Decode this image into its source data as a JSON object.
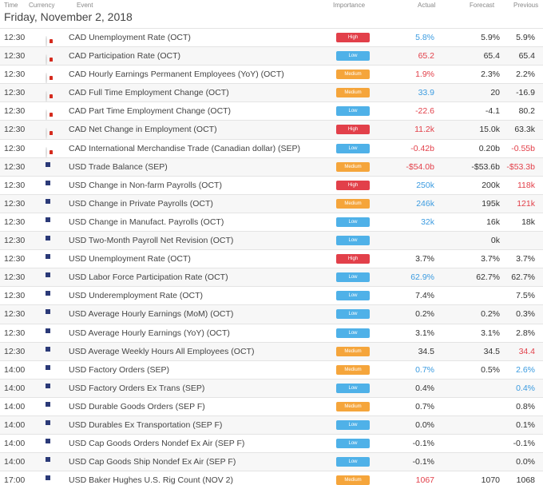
{
  "header": {
    "time": "Time",
    "currency": "Currency",
    "event": "Event",
    "importance": "Importance",
    "actual": "Actual",
    "forecast": "Forecast",
    "previous": "Previous"
  },
  "date": "Friday, November 2, 2018",
  "colors": {
    "high": "#e2404a",
    "low": "#4fb1e8",
    "medium": "#f5a53b",
    "positive": "#3b9be0",
    "negative": "#e2404a"
  },
  "rows": [
    {
      "time": "12:30",
      "flag": "ca",
      "event": "CAD Unemployment Rate (OCT)",
      "importance": "High",
      "imp": "high",
      "actual": "5.8%",
      "actual_tone": "pos",
      "forecast": "5.9%",
      "previous": "5.9%",
      "previous_tone": "neu"
    },
    {
      "time": "12:30",
      "flag": "ca",
      "event": "CAD Participation Rate (OCT)",
      "importance": "Low",
      "imp": "low",
      "actual": "65.2",
      "actual_tone": "neg",
      "forecast": "65.4",
      "previous": "65.4",
      "previous_tone": "neu"
    },
    {
      "time": "12:30",
      "flag": "ca",
      "event": "CAD Hourly Earnings Permanent Employees (YoY) (OCT)",
      "importance": "Medium",
      "imp": "medium",
      "actual": "1.9%",
      "actual_tone": "neg",
      "forecast": "2.3%",
      "previous": "2.2%",
      "previous_tone": "neu"
    },
    {
      "time": "12:30",
      "flag": "ca",
      "event": "CAD Full Time Employment Change (OCT)",
      "importance": "Medium",
      "imp": "medium",
      "actual": "33.9",
      "actual_tone": "pos",
      "forecast": "20",
      "previous": "-16.9",
      "previous_tone": "neu"
    },
    {
      "time": "12:30",
      "flag": "ca",
      "event": "CAD Part Time Employment Change (OCT)",
      "importance": "Low",
      "imp": "low",
      "actual": "-22.6",
      "actual_tone": "neg",
      "forecast": "-4.1",
      "previous": "80.2",
      "previous_tone": "neu"
    },
    {
      "time": "12:30",
      "flag": "ca",
      "event": "CAD Net Change in Employment (OCT)",
      "importance": "High",
      "imp": "high",
      "actual": "11.2k",
      "actual_tone": "neg",
      "forecast": "15.0k",
      "previous": "63.3k",
      "previous_tone": "neu"
    },
    {
      "time": "12:30",
      "flag": "ca",
      "event": "CAD International Merchandise Trade (Canadian dollar) (SEP)",
      "importance": "Low",
      "imp": "low",
      "actual": "-0.42b",
      "actual_tone": "neg",
      "forecast": "0.20b",
      "previous": "-0.55b",
      "previous_tone": "neg"
    },
    {
      "time": "12:30",
      "flag": "us",
      "event": "USD Trade Balance (SEP)",
      "importance": "Medium",
      "imp": "medium",
      "actual": "-$54.0b",
      "actual_tone": "neg",
      "forecast": "-$53.6b",
      "previous": "-$53.3b",
      "previous_tone": "neg"
    },
    {
      "time": "12:30",
      "flag": "us",
      "event": "USD Change in Non-farm Payrolls (OCT)",
      "importance": "High",
      "imp": "high",
      "actual": "250k",
      "actual_tone": "pos",
      "forecast": "200k",
      "previous": "118k",
      "previous_tone": "neg"
    },
    {
      "time": "12:30",
      "flag": "us",
      "event": "USD Change in Private Payrolls (OCT)",
      "importance": "Medium",
      "imp": "medium",
      "actual": "246k",
      "actual_tone": "pos",
      "forecast": "195k",
      "previous": "121k",
      "previous_tone": "neg"
    },
    {
      "time": "12:30",
      "flag": "us",
      "event": "USD Change in Manufact. Payrolls (OCT)",
      "importance": "Low",
      "imp": "low",
      "actual": "32k",
      "actual_tone": "pos",
      "forecast": "16k",
      "previous": "18k",
      "previous_tone": "neu"
    },
    {
      "time": "12:30",
      "flag": "us",
      "event": "USD Two-Month Payroll Net Revision (OCT)",
      "importance": "Low",
      "imp": "low",
      "actual": "",
      "actual_tone": "neu",
      "forecast": "0k",
      "previous": "",
      "previous_tone": "neu"
    },
    {
      "time": "12:30",
      "flag": "us",
      "event": "USD Unemployment Rate (OCT)",
      "importance": "High",
      "imp": "high",
      "actual": "3.7%",
      "actual_tone": "neu",
      "forecast": "3.7%",
      "previous": "3.7%",
      "previous_tone": "neu"
    },
    {
      "time": "12:30",
      "flag": "us",
      "event": "USD Labor Force Participation Rate (OCT)",
      "importance": "Low",
      "imp": "low",
      "actual": "62.9%",
      "actual_tone": "pos",
      "forecast": "62.7%",
      "previous": "62.7%",
      "previous_tone": "neu"
    },
    {
      "time": "12:30",
      "flag": "us",
      "event": "USD Underemployment Rate (OCT)",
      "importance": "Low",
      "imp": "low",
      "actual": "7.4%",
      "actual_tone": "neu",
      "forecast": "",
      "previous": "7.5%",
      "previous_tone": "neu"
    },
    {
      "time": "12:30",
      "flag": "us",
      "event": "USD Average Hourly Earnings (MoM) (OCT)",
      "importance": "Low",
      "imp": "low",
      "actual": "0.2%",
      "actual_tone": "neu",
      "forecast": "0.2%",
      "previous": "0.3%",
      "previous_tone": "neu"
    },
    {
      "time": "12:30",
      "flag": "us",
      "event": "USD Average Hourly Earnings (YoY) (OCT)",
      "importance": "Low",
      "imp": "low",
      "actual": "3.1%",
      "actual_tone": "neu",
      "forecast": "3.1%",
      "previous": "2.8%",
      "previous_tone": "neu"
    },
    {
      "time": "12:30",
      "flag": "us",
      "event": "USD Average Weekly Hours All Employees (OCT)",
      "importance": "Medium",
      "imp": "medium",
      "actual": "34.5",
      "actual_tone": "neu",
      "forecast": "34.5",
      "previous": "34.4",
      "previous_tone": "neg"
    },
    {
      "time": "14:00",
      "flag": "us",
      "event": "USD Factory Orders (SEP)",
      "importance": "Medium",
      "imp": "medium",
      "actual": "0.7%",
      "actual_tone": "pos",
      "forecast": "0.5%",
      "previous": "2.6%",
      "previous_tone": "pos"
    },
    {
      "time": "14:00",
      "flag": "us",
      "event": "USD Factory Orders Ex Trans (SEP)",
      "importance": "Low",
      "imp": "low",
      "actual": "0.4%",
      "actual_tone": "neu",
      "forecast": "",
      "previous": "0.4%",
      "previous_tone": "pos"
    },
    {
      "time": "14:00",
      "flag": "us",
      "event": "USD Durable Goods Orders (SEP F)",
      "importance": "Medium",
      "imp": "medium",
      "actual": "0.7%",
      "actual_tone": "neu",
      "forecast": "",
      "previous": "0.8%",
      "previous_tone": "neu"
    },
    {
      "time": "14:00",
      "flag": "us",
      "event": "USD Durables Ex Transportation (SEP F)",
      "importance": "Low",
      "imp": "low",
      "actual": "0.0%",
      "actual_tone": "neu",
      "forecast": "",
      "previous": "0.1%",
      "previous_tone": "neu"
    },
    {
      "time": "14:00",
      "flag": "us",
      "event": "USD Cap Goods Orders Nondef Ex Air (SEP F)",
      "importance": "Low",
      "imp": "low",
      "actual": "-0.1%",
      "actual_tone": "neu",
      "forecast": "",
      "previous": "-0.1%",
      "previous_tone": "neu"
    },
    {
      "time": "14:00",
      "flag": "us",
      "event": "USD Cap Goods Ship Nondef Ex Air (SEP F)",
      "importance": "Low",
      "imp": "low",
      "actual": "-0.1%",
      "actual_tone": "neu",
      "forecast": "",
      "previous": "0.0%",
      "previous_tone": "neu"
    },
    {
      "time": "17:00",
      "flag": "us",
      "event": "USD Baker Hughes U.S. Rig Count (NOV 2)",
      "importance": "Medium",
      "imp": "medium",
      "actual": "1067",
      "actual_tone": "neg",
      "forecast": "1070",
      "previous": "1068",
      "previous_tone": "neu"
    }
  ]
}
